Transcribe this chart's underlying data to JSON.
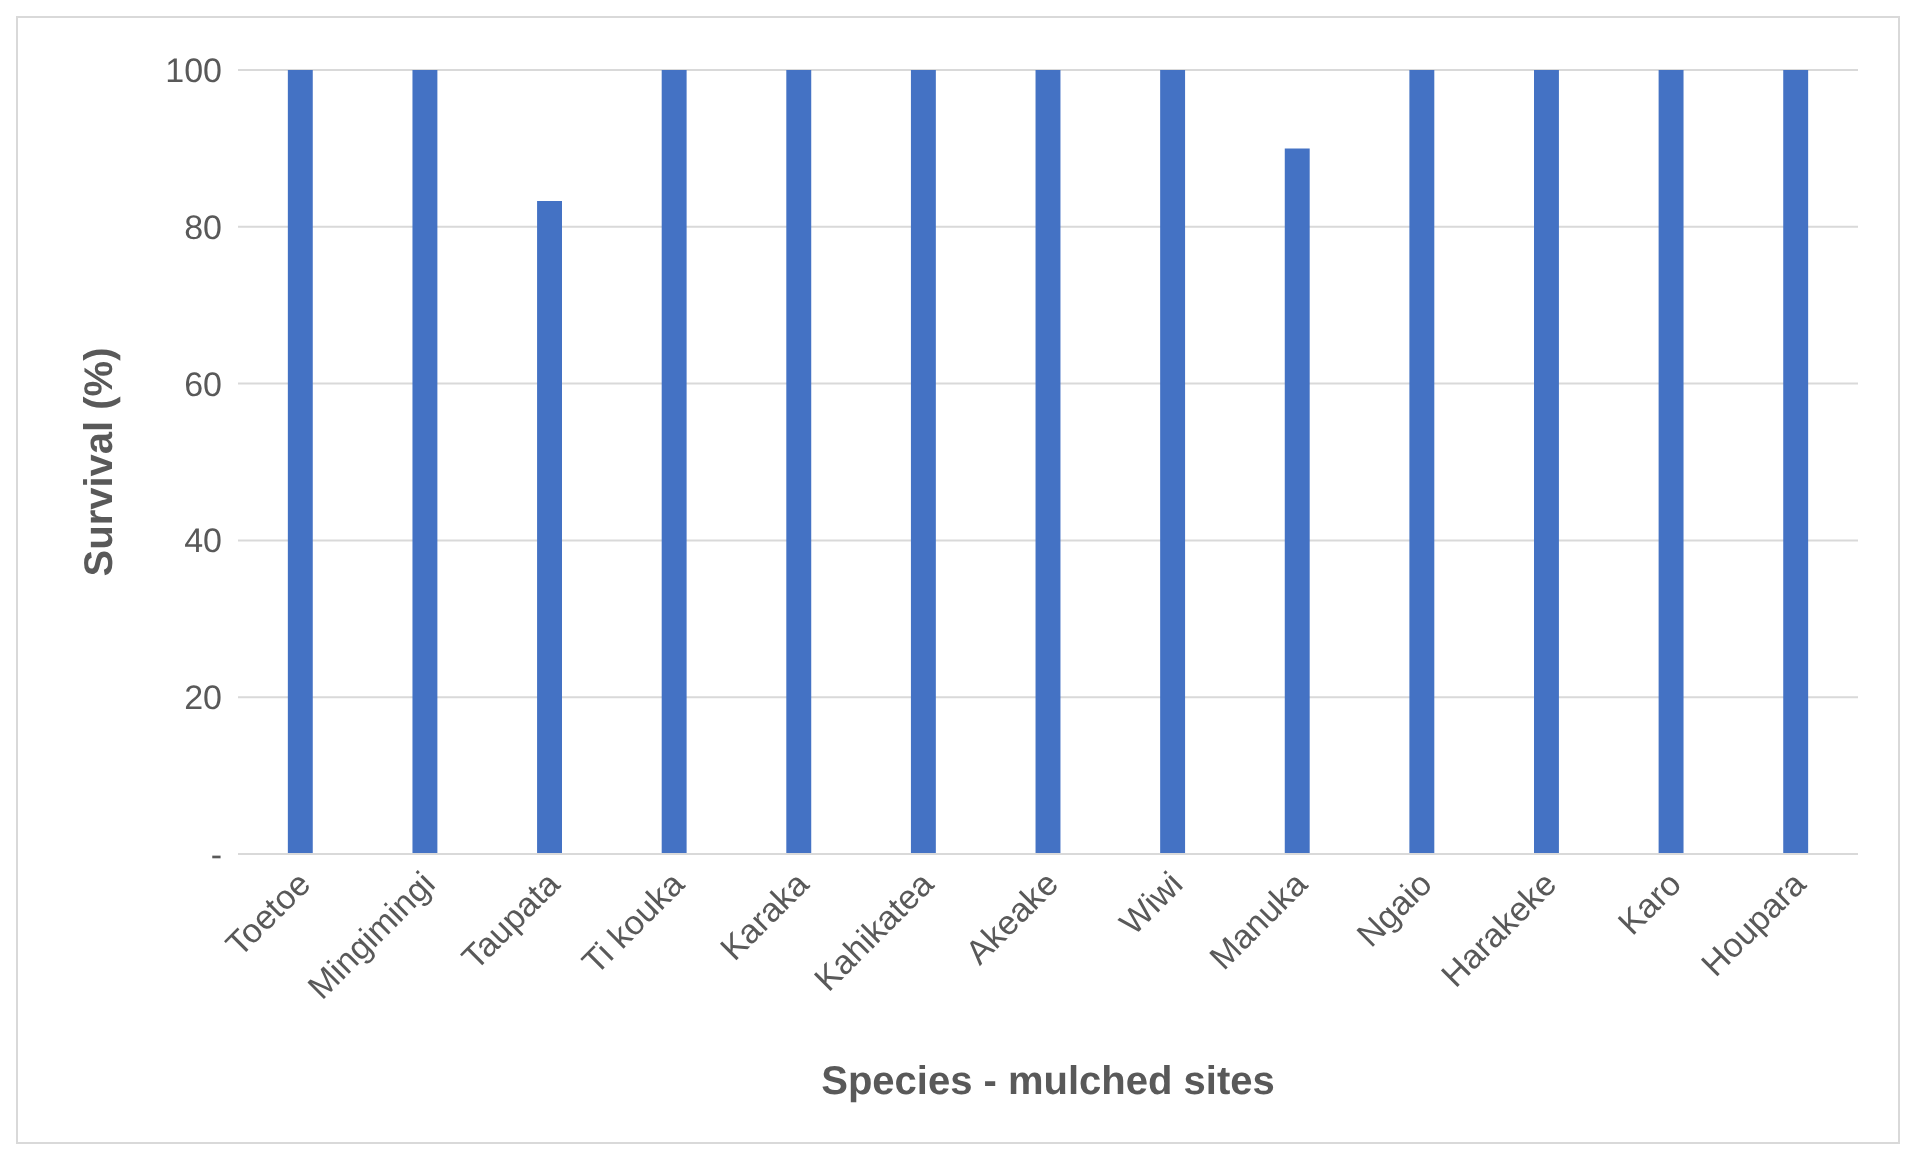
{
  "chart_data": {
    "type": "bar",
    "xlabel": "Species - mulched sites",
    "ylabel": "Survival (%)",
    "categories": [
      "Toetoe",
      "Mingimingi",
      "Taupata",
      "Ti kouka",
      "Karaka",
      "Kahikatea",
      "Akeake",
      "Wiwi",
      "Manuka",
      "Ngaio",
      "Harakeke",
      "Karo",
      "Houpara"
    ],
    "values": [
      100,
      100,
      83.3,
      100,
      100,
      100,
      100,
      100,
      90,
      100,
      100,
      100,
      100
    ],
    "color": "#4472c4",
    "ylim": [
      0,
      100
    ],
    "yticks": [
      {
        "value": 0,
        "label": "-"
      },
      20,
      40,
      60,
      80,
      100
    ],
    "grid": "y",
    "legend": false
  }
}
